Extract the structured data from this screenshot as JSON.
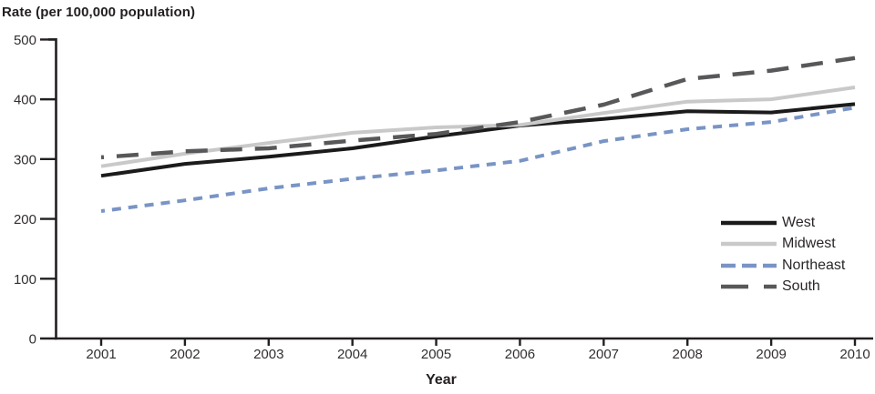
{
  "title": "Rate (per 100,000 population)",
  "xlabel": "Year",
  "axis_color": "#231f20",
  "tick_label_color": "#332f30",
  "chart_data": {
    "type": "line",
    "title": "Rate (per 100,000 population)",
    "xlabel": "Year",
    "ylabel": "Rate (per 100,000 population)",
    "categories": [
      2001,
      2002,
      2003,
      2004,
      2005,
      2006,
      2007,
      2008,
      2009,
      2010
    ],
    "ylim": [
      0,
      500
    ],
    "yticks": [
      0,
      100,
      200,
      300,
      400,
      500
    ],
    "grid": false,
    "legend_position": "right-middle",
    "series": [
      {
        "name": "West",
        "color": "#1b1b1b",
        "style": "solid",
        "stroke_width": 4,
        "dash": "",
        "legend_dash": "",
        "dash_offset": 0,
        "values": [
          272,
          292,
          304,
          318,
          338,
          356,
          367,
          380,
          378,
          392
        ]
      },
      {
        "name": "Midwest",
        "color": "#c9c9c9",
        "style": "solid",
        "stroke_width": 4,
        "dash": "",
        "legend_dash": "",
        "dash_offset": 0,
        "values": [
          288,
          309,
          327,
          344,
          353,
          357,
          377,
          396,
          400,
          420
        ]
      },
      {
        "name": "Northeast",
        "color": "#7994c5",
        "style": "dashed",
        "stroke_width": 4,
        "dash": "10 8",
        "legend_dash": "16 7",
        "dash_offset": 6,
        "values": [
          213,
          231,
          251,
          267,
          281,
          297,
          330,
          350,
          362,
          386
        ]
      },
      {
        "name": "South",
        "color": "#58585a",
        "style": "dashed",
        "stroke_width": 4.5,
        "dash": "24 14",
        "legend_dash": "30 17",
        "dash_offset": 21,
        "values": [
          303,
          313,
          318,
          331,
          342,
          362,
          391,
          434,
          448,
          469
        ]
      }
    ]
  }
}
